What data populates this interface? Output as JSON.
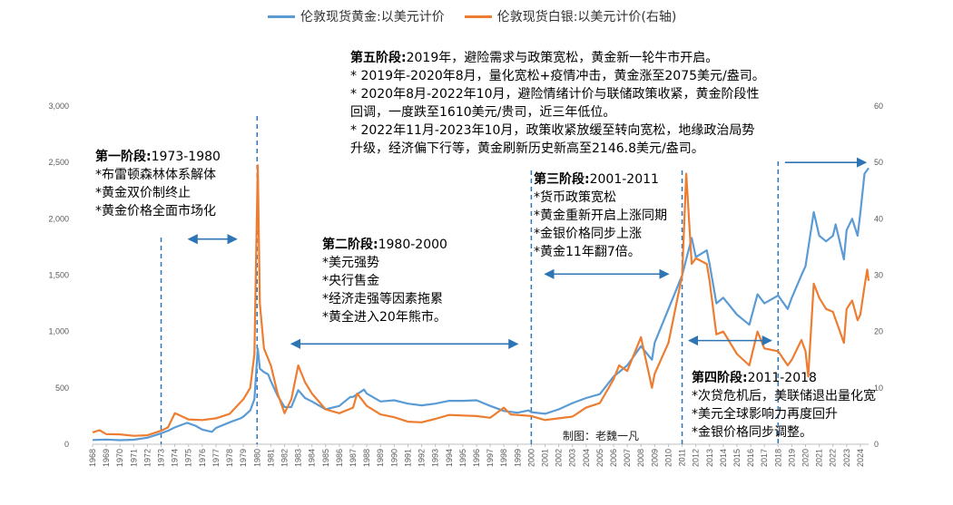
{
  "legend": [
    {
      "name": "伦敦现货黄金:以美元计价",
      "color": "#5b9bd5"
    },
    {
      "name": "伦敦现货白银:以美元计价(右轴)",
      "color": "#ed7d31"
    }
  ],
  "chart_data": {
    "type": "line",
    "title": "",
    "xlabel": "",
    "ylabel": "",
    "x_range": [
      1968,
      2024.6
    ],
    "y_left_range": [
      0,
      3000
    ],
    "y_right_range": [
      0,
      60
    ],
    "y_left_ticks": [
      "0",
      "500",
      "1,000",
      "1,500",
      "2,000",
      "2,500",
      "3,000"
    ],
    "y_right_ticks": [
      "0",
      "10",
      "20",
      "30",
      "40",
      "50",
      "60"
    ],
    "x_ticks": [
      "1968",
      "1969",
      "1970",
      "1971",
      "1972",
      "1973",
      "1974",
      "1975",
      "1976",
      "1977",
      "1978",
      "1979",
      "1980",
      "1981",
      "1982",
      "1983",
      "1984",
      "1985",
      "1986",
      "1987",
      "1988",
      "1989",
      "1990",
      "1991",
      "1992",
      "1993",
      "1994",
      "1995",
      "1996",
      "1997",
      "1998",
      "1999",
      "2000",
      "2001",
      "2002",
      "2003",
      "2004",
      "2005",
      "2006",
      "2007",
      "2008",
      "2009",
      "2010",
      "2011",
      "2012",
      "2013",
      "2014",
      "2015",
      "2016",
      "2017",
      "2018",
      "2019",
      "2020",
      "2021",
      "2022",
      "2023",
      "2024"
    ],
    "grid": false,
    "legend_position": "top",
    "series": [
      {
        "name": "伦敦现货黄金:以美元计价",
        "axis": "left",
        "color": "#5b9bd5",
        "points": [
          [
            1968,
            38
          ],
          [
            1969,
            42
          ],
          [
            1970,
            36
          ],
          [
            1971,
            40
          ],
          [
            1972,
            58
          ],
          [
            1973,
            97
          ],
          [
            1973.5,
            120
          ],
          [
            1974,
            150
          ],
          [
            1974.9,
            190
          ],
          [
            1975.5,
            165
          ],
          [
            1976,
            130
          ],
          [
            1976.7,
            110
          ],
          [
            1977,
            145
          ],
          [
            1978,
            195
          ],
          [
            1978.8,
            230
          ],
          [
            1979,
            245
          ],
          [
            1979.5,
            300
          ],
          [
            1979.8,
            400
          ],
          [
            1980.05,
            850
          ],
          [
            1980.2,
            670
          ],
          [
            1980.5,
            640
          ],
          [
            1980.8,
            620
          ],
          [
            1981,
            560
          ],
          [
            1981.5,
            430
          ],
          [
            1982,
            330
          ],
          [
            1982.5,
            330
          ],
          [
            1983,
            480
          ],
          [
            1983.5,
            410
          ],
          [
            1984,
            380
          ],
          [
            1985,
            310
          ],
          [
            1986,
            340
          ],
          [
            1986.8,
            420
          ],
          [
            1987,
            420
          ],
          [
            1987.8,
            485
          ],
          [
            1988,
            450
          ],
          [
            1989,
            380
          ],
          [
            1990,
            390
          ],
          [
            1991,
            360
          ],
          [
            1992,
            345
          ],
          [
            1993,
            360
          ],
          [
            1994,
            385
          ],
          [
            1995,
            385
          ],
          [
            1996,
            390
          ],
          [
            1997,
            340
          ],
          [
            1998,
            295
          ],
          [
            1999,
            280
          ],
          [
            1999.8,
            300
          ],
          [
            2000,
            285
          ],
          [
            2001,
            270
          ],
          [
            2002,
            310
          ],
          [
            2003,
            365
          ],
          [
            2004,
            410
          ],
          [
            2005,
            445
          ],
          [
            2006,
            600
          ],
          [
            2007,
            700
          ],
          [
            2008,
            870
          ],
          [
            2008.8,
            750
          ],
          [
            2009,
            900
          ],
          [
            2010,
            1200
          ],
          [
            2011,
            1500
          ],
          [
            2011.7,
            1830
          ],
          [
            2012,
            1660
          ],
          [
            2012.8,
            1720
          ],
          [
            2013,
            1600
          ],
          [
            2013.5,
            1250
          ],
          [
            2014,
            1300
          ],
          [
            2015,
            1150
          ],
          [
            2015.9,
            1060
          ],
          [
            2016.5,
            1330
          ],
          [
            2017,
            1250
          ],
          [
            2018,
            1320
          ],
          [
            2018.7,
            1200
          ],
          [
            2019,
            1300
          ],
          [
            2019.7,
            1500
          ],
          [
            2020,
            1580
          ],
          [
            2020.6,
            2060
          ],
          [
            2021,
            1850
          ],
          [
            2021.5,
            1800
          ],
          [
            2022,
            1850
          ],
          [
            2022.2,
            1950
          ],
          [
            2022.8,
            1640
          ],
          [
            2023,
            1900
          ],
          [
            2023.4,
            2000
          ],
          [
            2023.8,
            1850
          ],
          [
            2024,
            2050
          ],
          [
            2024.3,
            2400
          ],
          [
            2024.6,
            2450
          ]
        ]
      },
      {
        "name": "伦敦现货白银:以美元计价(右轴)",
        "axis": "right",
        "color": "#ed7d31",
        "points": [
          [
            1968,
            2.1
          ],
          [
            1968.5,
            2.5
          ],
          [
            1969,
            1.8
          ],
          [
            1970,
            1.75
          ],
          [
            1971,
            1.5
          ],
          [
            1972,
            1.6
          ],
          [
            1973,
            2.4
          ],
          [
            1973.5,
            3.0
          ],
          [
            1974,
            5.5
          ],
          [
            1974.3,
            5.2
          ],
          [
            1975,
            4.4
          ],
          [
            1976,
            4.3
          ],
          [
            1977,
            4.6
          ],
          [
            1978,
            5.4
          ],
          [
            1979,
            8.0
          ],
          [
            1979.5,
            10.0
          ],
          [
            1979.8,
            16.0
          ],
          [
            1980.05,
            49.5
          ],
          [
            1980.2,
            25.0
          ],
          [
            1980.5,
            17.0
          ],
          [
            1981,
            14.0
          ],
          [
            1981.5,
            9.0
          ],
          [
            1982,
            5.5
          ],
          [
            1982.5,
            8.0
          ],
          [
            1983,
            14.0
          ],
          [
            1983.5,
            11.0
          ],
          [
            1984,
            9.0
          ],
          [
            1985,
            6.2
          ],
          [
            1986,
            5.5
          ],
          [
            1987,
            6.5
          ],
          [
            1987.3,
            9.0
          ],
          [
            1988,
            6.8
          ],
          [
            1989,
            5.3
          ],
          [
            1990,
            4.8
          ],
          [
            1991,
            4.0
          ],
          [
            1992,
            3.9
          ],
          [
            1993,
            4.5
          ],
          [
            1994,
            5.2
          ],
          [
            1995,
            5.1
          ],
          [
            1996,
            5.0
          ],
          [
            1997,
            4.7
          ],
          [
            1998,
            6.5
          ],
          [
            1998.5,
            5.3
          ],
          [
            1999,
            5.2
          ],
          [
            2000,
            5.0
          ],
          [
            2001,
            4.3
          ],
          [
            2002,
            4.6
          ],
          [
            2003,
            4.9
          ],
          [
            2004,
            6.5
          ],
          [
            2005,
            7.3
          ],
          [
            2006,
            11.5
          ],
          [
            2006.4,
            14.0
          ],
          [
            2007,
            13.0
          ],
          [
            2008,
            19.0
          ],
          [
            2008.8,
            10.0
          ],
          [
            2009,
            12.5
          ],
          [
            2010,
            18.0
          ],
          [
            2011,
            30.0
          ],
          [
            2011.3,
            48.0
          ],
          [
            2011.7,
            32.0
          ],
          [
            2012,
            33.0
          ],
          [
            2012.8,
            32.0
          ],
          [
            2013,
            29.0
          ],
          [
            2013.5,
            19.5
          ],
          [
            2014,
            20.0
          ],
          [
            2015,
            16.0
          ],
          [
            2015.9,
            14.0
          ],
          [
            2016.5,
            20.0
          ],
          [
            2017,
            17.0
          ],
          [
            2018,
            16.5
          ],
          [
            2018.7,
            14.0
          ],
          [
            2019,
            15.0
          ],
          [
            2019.7,
            18.5
          ],
          [
            2020,
            16.5
          ],
          [
            2020.2,
            12.0
          ],
          [
            2020.6,
            28.5
          ],
          [
            2021,
            26.0
          ],
          [
            2021.5,
            24.0
          ],
          [
            2022,
            23.5
          ],
          [
            2022.8,
            18.0
          ],
          [
            2023,
            24.0
          ],
          [
            2023.4,
            25.5
          ],
          [
            2023.8,
            22.0
          ],
          [
            2024,
            23.0
          ],
          [
            2024.3,
            28.0
          ],
          [
            2024.5,
            31.0
          ],
          [
            2024.6,
            29.0
          ]
        ]
      }
    ],
    "dividers": [
      1973,
      1980,
      2000,
      2011,
      2018
    ],
    "arrows": [
      {
        "from": 1975,
        "to": 1978.5,
        "y": 1820,
        "heads": "both"
      },
      {
        "from": 1982.5,
        "to": 1999,
        "y": 890,
        "heads": "both"
      },
      {
        "from": 2001,
        "to": 2010,
        "y": 1510,
        "heads": "both"
      },
      {
        "from": 2011.5,
        "to": 2017.5,
        "y": 920,
        "heads": "both"
      },
      {
        "from": 2018.5,
        "to": 2024.4,
        "y": 2500,
        "heads": "right"
      }
    ]
  },
  "annotations": [
    {
      "id": "phase1",
      "title": "第一阶段:",
      "title_rest": "1973-1980",
      "lines": [
        "*布雷顿森林体系解体",
        "*黄金双价制终止",
        "*黄金价格全面市场化"
      ]
    },
    {
      "id": "phase2",
      "title": "第二阶段:",
      "title_rest": "1980-2000",
      "lines": [
        "*美元强势",
        "*央行售金",
        "*经济走强等因素拖累",
        "*黄全进入20年熊市。"
      ]
    },
    {
      "id": "phase3",
      "title": "第三阶段:",
      "title_rest": "2001-2011",
      "lines": [
        "*货币政策宽松",
        "*黄金重新开启上涨同期",
        "*金银价格同步上涨",
        "*黄金11年翻7倍。"
      ]
    },
    {
      "id": "phase4",
      "title": "第四阶段:",
      "title_rest": "2011-2018",
      "lines": [
        "*次贷危机后，美联储退出量化宽",
        "*美元全球影响力再度回升",
        "*金银价格同步调整。"
      ]
    },
    {
      "id": "phase5",
      "title": "第五阶段:",
      "title_rest": "2019年，避险需求与政策宽松，黄金新一轮牛市开启。",
      "lines": [
        "* 2019年-2020年8月，量化宽松+疫情冲击，黄金涨至2075美元/盎司。",
        "* 2020年8月-2022年10月，避险情绪计价与联储政策收紧，黄金阶段性",
        "回调，一度跌至1610美元/贵司，近三年低位。",
        "* 2022年11月-2023年10月，政策收紧放缓至转向宽松，地缘政治局势",
        "升级，经济偏下行等，黄金刷新历史新高至2146.8美元/盎司。"
      ]
    }
  ],
  "credit": "制图：老魏一凡"
}
